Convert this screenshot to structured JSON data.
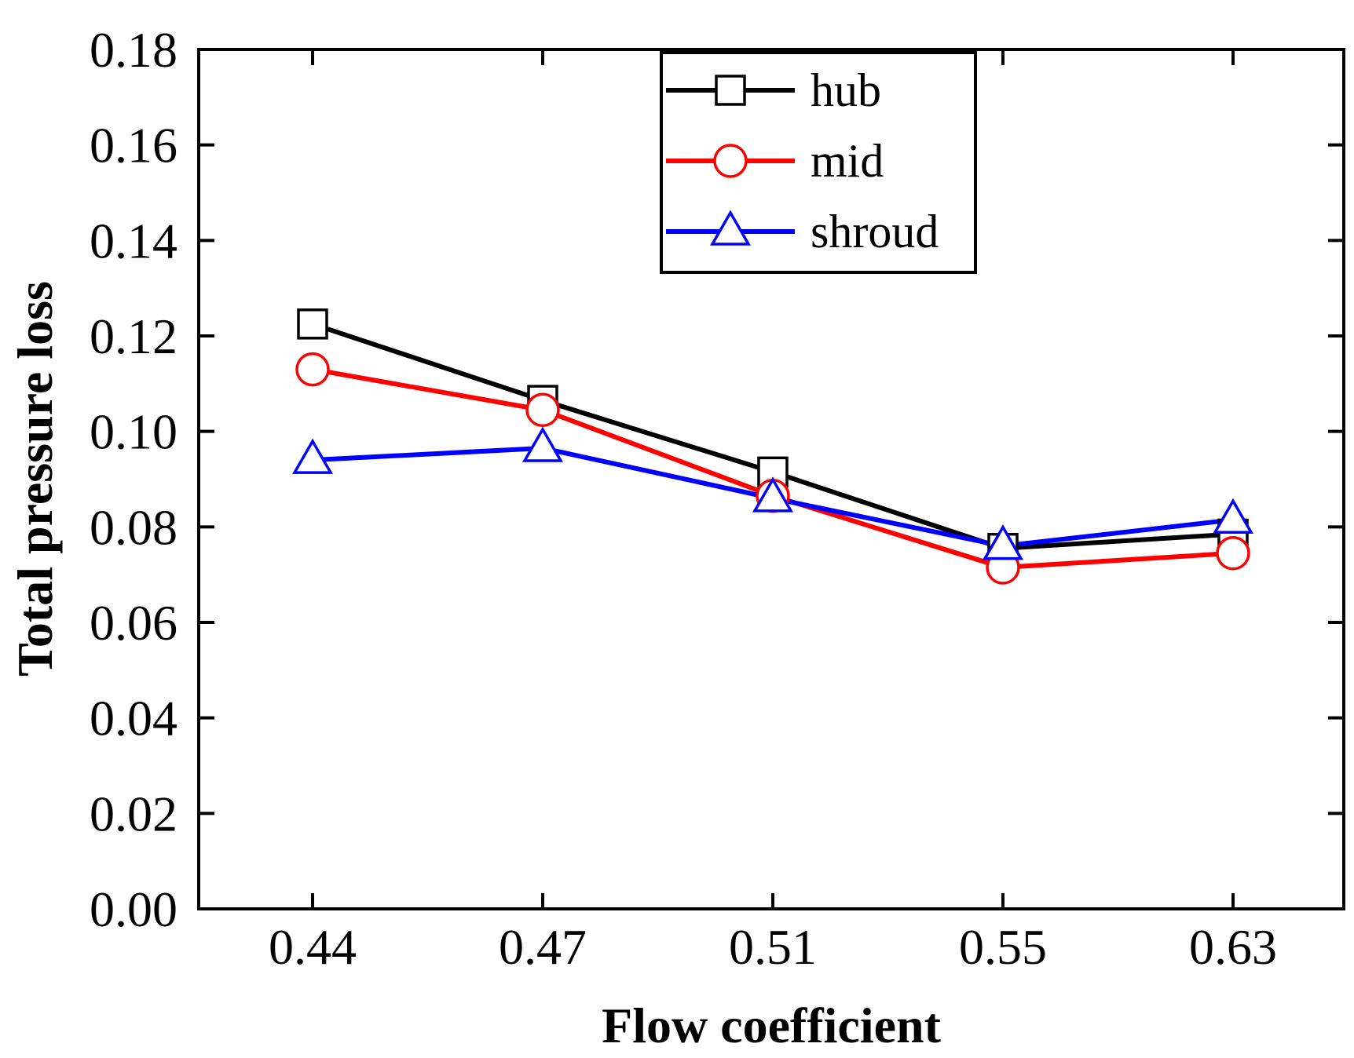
{
  "chart_data": {
    "type": "line",
    "title": "",
    "xlabel": "Flow coefficient",
    "ylabel": "Total pressure loss",
    "categories": [
      "0.44",
      "0.47",
      "0.51",
      "0.55",
      "0.63"
    ],
    "ylim": [
      0,
      0.18
    ],
    "yticks": [
      "0.00",
      "0.02",
      "0.04",
      "0.06",
      "0.08",
      "0.10",
      "0.12",
      "0.14",
      "0.16",
      "0.18"
    ],
    "legend_position": "top-center",
    "grid": false,
    "series": [
      {
        "name": "hub",
        "color": "#000000",
        "marker": "square",
        "values": [
          0.1225,
          0.1065,
          0.0915,
          0.0755,
          0.0785
        ]
      },
      {
        "name": "mid",
        "color": "#ff0000",
        "marker": "circle",
        "values": [
          0.113,
          0.1045,
          0.0865,
          0.0715,
          0.0745
        ]
      },
      {
        "name": "shroud",
        "color": "#0000ff",
        "marker": "triangle",
        "values": [
          0.094,
          0.0965,
          0.086,
          0.076,
          0.0815
        ]
      }
    ]
  }
}
